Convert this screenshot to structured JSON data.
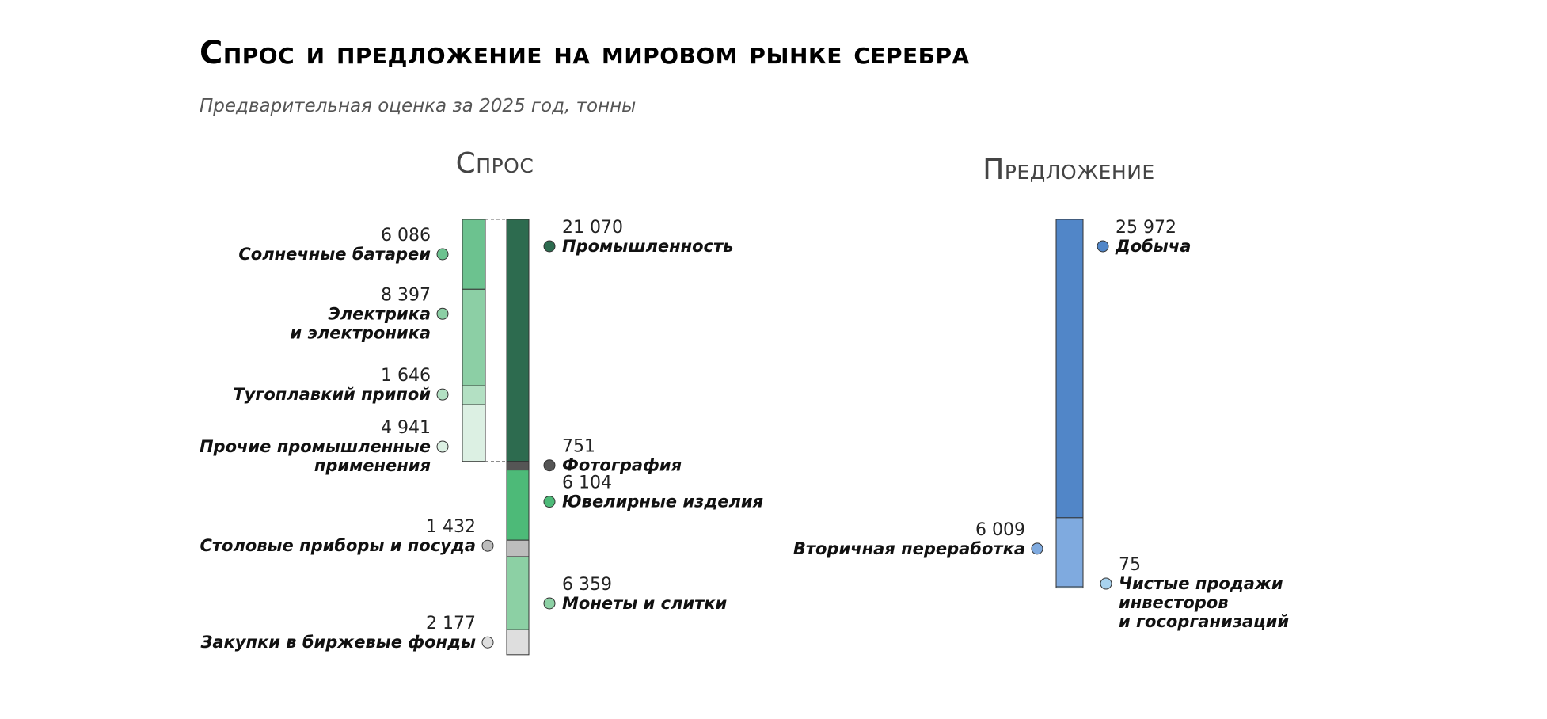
{
  "title": "Спрос и предложение на мировом рынке серебра",
  "subtitle": "Предварительная оценка за 2025 год, тонны",
  "chart_data": [
    {
      "type": "bar",
      "title": "Спрос",
      "stacked": true,
      "series": [
        {
          "key": "industry",
          "name": "Промышленность",
          "value": 21070,
          "color": "#2d6b4f",
          "label_lines": [
            "Промышленность"
          ],
          "value_text": "21 070"
        },
        {
          "key": "photo",
          "name": "Фотография",
          "value": 751,
          "color": "#555555",
          "label_lines": [
            "Фотография"
          ],
          "value_text": "751"
        },
        {
          "key": "jewelry",
          "name": "Ювелирные изделия",
          "value": 6104,
          "color": "#4dba78",
          "label_lines": [
            "Ювелирные изделия"
          ],
          "value_text": "6 104"
        },
        {
          "key": "silverware",
          "name": "Столовые приборы и посуда",
          "value": 1432,
          "color": "#bdbdbd",
          "label_lines": [
            "Столовые приборы и посуда"
          ],
          "value_text": "1 432"
        },
        {
          "key": "coins",
          "name": "Монеты и слитки",
          "value": 6359,
          "color": "#8cd0a4",
          "label_lines": [
            "Монеты и слитки"
          ],
          "value_text": "6 359"
        },
        {
          "key": "etf",
          "name": "Закупки в биржевые фонды",
          "value": 2177,
          "color": "#dedede",
          "label_lines": [
            "Закупки в биржевые фонды"
          ],
          "value_text": "2 177"
        }
      ],
      "industry_breakdown": [
        {
          "key": "solar",
          "name": "Солнечные батареи",
          "value": 6086,
          "color": "#6cc28f",
          "label_lines": [
            "Солнечные батареи"
          ],
          "value_text": "6 086"
        },
        {
          "key": "electrical",
          "name": "Электрика и электроника",
          "value": 8397,
          "color": "#8ccfa5",
          "label_lines": [
            "Электрика",
            "и электроника"
          ],
          "value_text": "8 397"
        },
        {
          "key": "brazing",
          "name": "Тугоплавкий припой",
          "value": 1646,
          "color": "#b3e0c3",
          "label_lines": [
            "Тугоплавкий припой"
          ],
          "value_text": "1 646"
        },
        {
          "key": "other_industrial",
          "name": "Прочие промышленные применения",
          "value": 4941,
          "color": "#dcf0e3",
          "label_lines": [
            "Прочие промышленные",
            "применения"
          ],
          "value_text": "4 941"
        }
      ]
    },
    {
      "type": "bar",
      "title": "Предложение",
      "stacked": true,
      "series": [
        {
          "key": "mining",
          "name": "Добыча",
          "value": 25972,
          "color": "#5186c8",
          "label_lines": [
            "Добыча"
          ],
          "value_text": "25 972"
        },
        {
          "key": "recycling",
          "name": "Вторичная переработка",
          "value": 6009,
          "color": "#7faadf",
          "label_lines": [
            "Вторичная переработка"
          ],
          "value_text": "6 009"
        },
        {
          "key": "net_sales",
          "name": "Чистые продажи инвесторов и госорганизаций",
          "value": 75,
          "color": "#a8d2ee",
          "label_lines": [
            "Чистые продажи",
            "инвесторов",
            "и госорганизаций"
          ],
          "value_text": "75"
        }
      ]
    }
  ]
}
